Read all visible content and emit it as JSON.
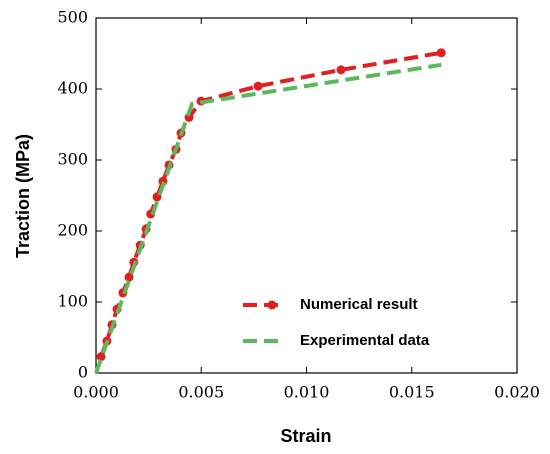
{
  "chart_data": {
    "type": "line",
    "xlabel": "Strain",
    "ylabel": "Traction (MPa)",
    "xlim": [
      0,
      0.02
    ],
    "ylim": [
      0,
      500
    ],
    "xticks": [
      {
        "value": 0,
        "label": "0.000"
      },
      {
        "value": 0.005,
        "label": "0.005"
      },
      {
        "value": 0.01,
        "label": "0.010"
      },
      {
        "value": 0.015,
        "label": "0.015"
      },
      {
        "value": 0.02,
        "label": "0.020"
      }
    ],
    "yticks": [
      0,
      100,
      200,
      300,
      400,
      500
    ],
    "legend": "lower right",
    "series": [
      {
        "name": "Numerical result",
        "color": "#e02020",
        "markers": true,
        "x": [
          0.00024,
          0.00052,
          0.00076,
          0.001,
          0.00128,
          0.00157,
          0.0018,
          0.0021,
          0.00238,
          0.0026,
          0.0029,
          0.00318,
          0.00347,
          0.0038,
          0.00404,
          0.00442,
          0.00499,
          0.0077,
          0.01164,
          0.0164
        ],
        "values": [
          23,
          45,
          68,
          90,
          113,
          135,
          156,
          180,
          203,
          224,
          248,
          270,
          293,
          315,
          338,
          360,
          383,
          404,
          427,
          451
        ]
      },
      {
        "name": "Experimental data",
        "color": "#5cb85c",
        "markers": false,
        "x": [
          0,
          0.00456,
          0.0164
        ],
        "values": [
          0,
          379,
          434
        ]
      }
    ]
  }
}
